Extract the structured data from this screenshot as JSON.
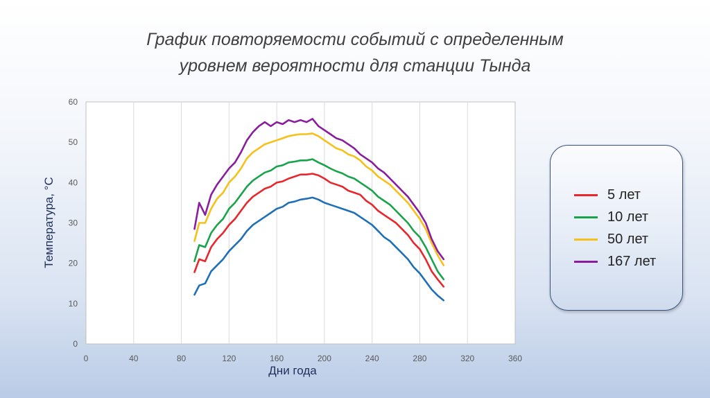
{
  "title": {
    "line1": "График повторяемости событий с определенным",
    "line2": "уровнем вероятности для станции Тында"
  },
  "chart_data": {
    "type": "line",
    "xlabel": "Дни года",
    "ylabel": "Температура, °С",
    "xlim": [
      0,
      360
    ],
    "ylim": [
      0,
      60
    ],
    "xticks": [
      0,
      40,
      80,
      120,
      160,
      200,
      240,
      280,
      320,
      360
    ],
    "yticks": [
      0,
      10,
      20,
      30,
      40,
      50,
      60
    ],
    "grid": "vertical",
    "legend_position": "right",
    "x": [
      91,
      95,
      100,
      105,
      110,
      115,
      120,
      125,
      130,
      135,
      140,
      145,
      150,
      155,
      160,
      165,
      170,
      175,
      180,
      185,
      190,
      195,
      200,
      205,
      210,
      215,
      220,
      225,
      230,
      235,
      240,
      245,
      250,
      255,
      260,
      265,
      270,
      275,
      280,
      285,
      290,
      295,
      300
    ],
    "series": [
      {
        "name": "5 лет",
        "color": "#e8262b",
        "values": [
          17.8,
          21.0,
          20.5,
          24.0,
          26.0,
          27.5,
          29.5,
          31.0,
          33.0,
          35.0,
          36.5,
          37.5,
          38.5,
          39.0,
          40.0,
          40.3,
          41.0,
          41.5,
          42.0,
          42.0,
          42.2,
          41.8,
          41.0,
          40.0,
          39.5,
          39.0,
          38.0,
          37.5,
          37.0,
          35.5,
          34.5,
          33.0,
          32.0,
          31.0,
          30.0,
          28.5,
          27.0,
          25.0,
          23.5,
          21.0,
          18.0,
          16.0,
          14.2
        ]
      },
      {
        "name": "10 лет",
        "color": "#19a34a",
        "values": [
          20.5,
          24.5,
          24.0,
          27.5,
          29.5,
          31.0,
          33.5,
          35.0,
          37.0,
          39.0,
          40.5,
          41.5,
          42.5,
          43.0,
          44.0,
          44.3,
          45.0,
          45.2,
          45.5,
          45.5,
          45.8,
          45.0,
          44.3,
          43.5,
          42.8,
          42.3,
          41.5,
          41.0,
          40.0,
          39.0,
          38.0,
          36.5,
          35.5,
          34.5,
          33.0,
          31.5,
          30.0,
          28.0,
          26.5,
          24.0,
          21.0,
          18.0,
          16.0
        ]
      },
      {
        "name": "50 лет",
        "color": "#f6c019",
        "values": [
          25.5,
          30.0,
          30.0,
          33.5,
          36.0,
          37.5,
          40.0,
          41.5,
          43.5,
          46.0,
          47.5,
          48.5,
          49.5,
          50.0,
          50.5,
          51.0,
          51.5,
          51.8,
          52.0,
          52.0,
          52.2,
          51.5,
          50.5,
          49.5,
          48.5,
          48.0,
          47.0,
          46.5,
          45.5,
          44.0,
          43.0,
          41.5,
          40.5,
          39.5,
          38.0,
          36.5,
          35.0,
          33.0,
          31.0,
          28.5,
          25.0,
          22.0,
          19.5
        ]
      },
      {
        "name": "167 лет",
        "color": "#8a1c9e",
        "values": [
          28.5,
          35.0,
          32.0,
          37.0,
          39.5,
          41.5,
          43.5,
          45.0,
          47.5,
          50.5,
          52.5,
          54.0,
          55.0,
          54.0,
          55.0,
          54.5,
          55.5,
          55.0,
          55.5,
          55.0,
          55.8,
          54.0,
          53.0,
          52.0,
          51.0,
          50.5,
          49.5,
          48.5,
          47.0,
          46.0,
          45.0,
          43.5,
          42.5,
          41.0,
          39.5,
          38.0,
          36.5,
          34.5,
          32.5,
          30.0,
          26.0,
          23.0,
          21.0
        ]
      },
      {
        "name": "",
        "color": "#1f6fb8",
        "values": [
          12.2,
          14.5,
          15.0,
          18.0,
          19.5,
          21.0,
          23.0,
          24.5,
          26.0,
          28.0,
          29.5,
          30.5,
          31.5,
          32.5,
          33.5,
          34.0,
          35.0,
          35.3,
          35.8,
          36.0,
          36.3,
          35.8,
          35.0,
          34.5,
          34.0,
          33.5,
          33.0,
          32.5,
          31.5,
          30.5,
          29.5,
          28.0,
          26.5,
          25.5,
          24.0,
          22.5,
          21.0,
          19.0,
          17.5,
          15.5,
          13.5,
          12.0,
          10.8
        ]
      }
    ]
  }
}
